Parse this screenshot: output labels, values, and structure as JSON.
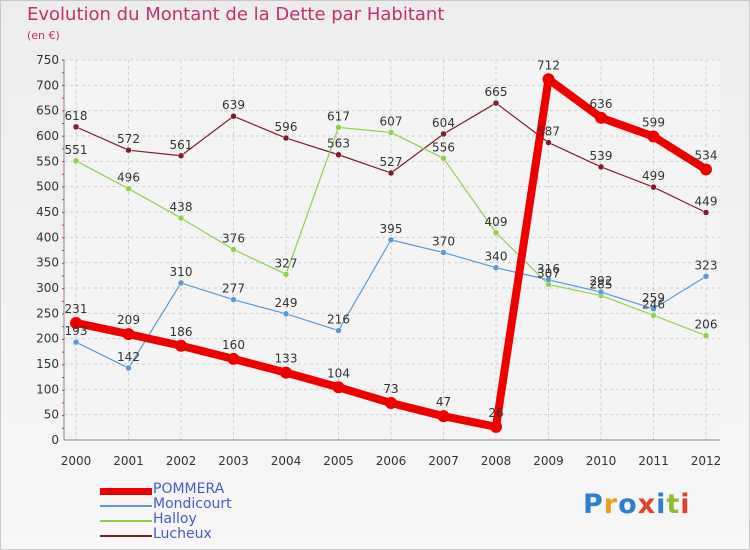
{
  "title": "Evolution du Montant de la Dette par Habitant",
  "subtitle": "(en €)",
  "chart_data": {
    "type": "line",
    "title": "Evolution du Montant de la Dette par Habitant",
    "subtitle": "(en €)",
    "x": [
      "2000",
      "2001",
      "2002",
      "2003",
      "2004",
      "2005",
      "2006",
      "2007",
      "2008",
      "2009",
      "2010",
      "2011",
      "2012"
    ],
    "ylim": [
      0,
      750
    ],
    "yticks": [
      0,
      50,
      100,
      150,
      200,
      250,
      300,
      350,
      400,
      450,
      500,
      550,
      600,
      650,
      700,
      750
    ],
    "grid": "dashed",
    "legend_position": "bottom-left",
    "series": [
      {
        "name": "POMMERA",
        "color": "#ee0000",
        "values": [
          231,
          209,
          186,
          160,
          133,
          104,
          73,
          47,
          26,
          712,
          636,
          599,
          534
        ]
      },
      {
        "name": "Mondicourt",
        "color": "#5b9bd5",
        "values": [
          193,
          142,
          310,
          277,
          249,
          216,
          395,
          370,
          340,
          316,
          292,
          259,
          323
        ]
      },
      {
        "name": "Halloy",
        "color": "#8fd14f",
        "values": [
          551,
          496,
          438,
          376,
          327,
          617,
          607,
          556,
          409,
          307,
          285,
          246,
          206
        ]
      },
      {
        "name": "Lucheux",
        "color": "#7a1f2a",
        "values": [
          618,
          572,
          561,
          639,
          596,
          563,
          527,
          604,
          665,
          587,
          539,
          499,
          449
        ]
      }
    ]
  },
  "logo": {
    "text": "Proxiti",
    "colors": [
      "#2e7fd0",
      "#e8a020",
      "#2e7fd0",
      "#e04030",
      "#2e7fd0",
      "#8fbf30",
      "#e04030"
    ]
  }
}
